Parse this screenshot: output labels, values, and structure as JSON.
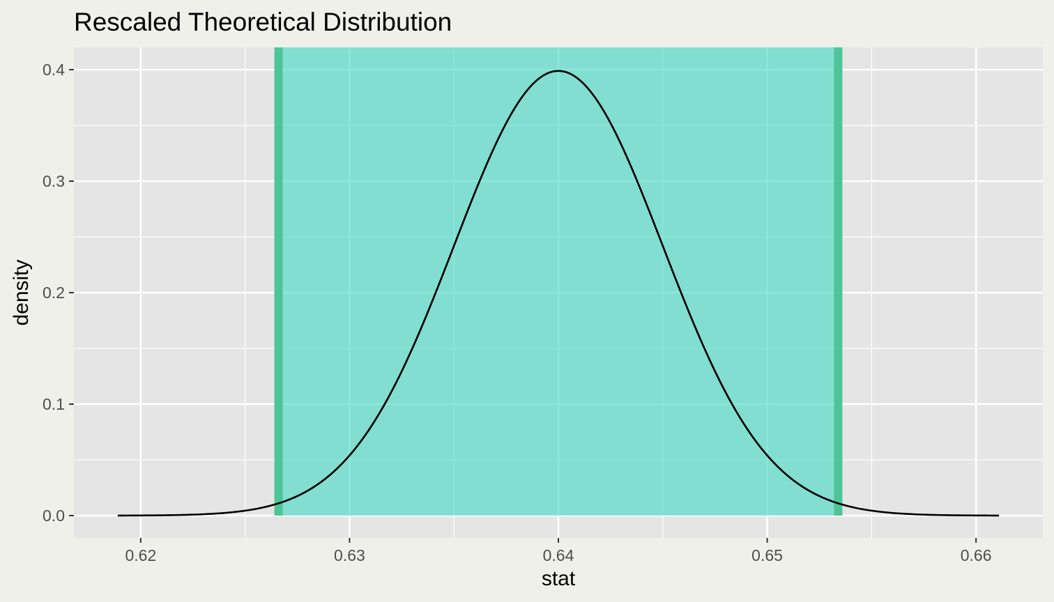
{
  "chart_data": {
    "type": "line",
    "title": "Rescaled Theoretical Distribution",
    "xlabel": "stat",
    "ylabel": "density",
    "xlim": [
      0.6168,
      0.6632
    ],
    "ylim": [
      -0.02,
      0.42
    ],
    "x_ticks": [
      0.62,
      0.63,
      0.64,
      0.65,
      0.66
    ],
    "x_tick_labels": [
      "0.62",
      "0.63",
      "0.64",
      "0.65",
      "0.66"
    ],
    "x_minor_ticks": [
      0.625,
      0.635,
      0.645,
      0.655
    ],
    "y_ticks": [
      0,
      0.1,
      0.2,
      0.3,
      0.4
    ],
    "y_tick_labels": [
      "0.0",
      "0.1",
      "0.2",
      "0.3",
      "0.4"
    ],
    "y_minor_ticks": [
      0.05,
      0.15,
      0.25,
      0.35
    ],
    "grid": true,
    "series": [
      {
        "distribution": "normal-density-rescaled",
        "mean": 0.64,
        "sd": 0.005,
        "peak": 0.3989,
        "x_start": 0.6189,
        "x_end": 0.6611,
        "color": "#000000"
      }
    ],
    "interval": {
      "lower": 0.6266,
      "upper": 0.6534,
      "fill": "#40d9c3",
      "fill_opacity": 0.6,
      "edge_color": "#4fc597",
      "curve_color": "#1f7a6e"
    },
    "colors": {
      "page_background": "#f0f0eb",
      "panel_background": "#e5e5e5",
      "grid": "#ffffff"
    }
  }
}
